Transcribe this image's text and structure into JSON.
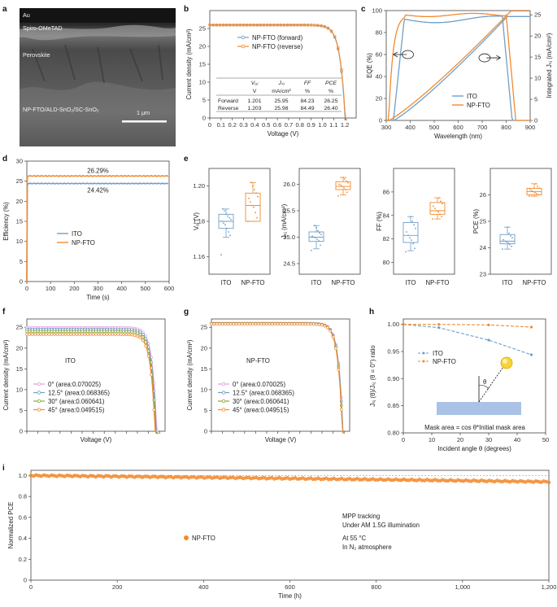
{
  "panels": {
    "a": "a",
    "b": "b",
    "c": "c",
    "d": "d",
    "e": "e",
    "f": "f",
    "g": "g",
    "h": "h",
    "i": "i"
  },
  "sem": {
    "layers": [
      "Au",
      "Spiro-OMeTAD",
      "Perovskite",
      "NP-FTO/ALD-SnO₂/SC-SnO₂"
    ],
    "scale_bar": "1 μm"
  },
  "colors": {
    "ito": "#6f9fc9",
    "npfto": "#f28a2e",
    "green": "#8aa636",
    "pink": "#e39be0",
    "purple": "#b07fd6"
  },
  "chart_data": [
    {
      "id": "b",
      "type": "line",
      "xlabel": "Voltage (V)",
      "ylabel": "Current density (mA/cm²)",
      "xlim": [
        0,
        1.3
      ],
      "ylim": [
        0,
        30
      ],
      "xticks": [
        "0",
        "0.1",
        "0.2",
        "0.3",
        "0.4",
        "0.5",
        "0.6",
        "0.7",
        "0.8",
        "0.9",
        "1.0",
        "1.1",
        "1.2"
      ],
      "yticks": [
        "0",
        "5",
        "10",
        "15",
        "20",
        "25"
      ],
      "series": [
        {
          "name": "NP-FTO (forward)",
          "jsc": 25.95,
          "voc": 1.201
        },
        {
          "name": "NP-FTO (reverse)",
          "jsc": 25.98,
          "voc": 1.203
        }
      ],
      "table": {
        "headers": [
          "Vₒⱼ",
          "Jₛⱼ",
          "FF",
          "PCE"
        ],
        "units": [
          "V",
          "mA/cm²",
          "%",
          "%"
        ],
        "rows": [
          {
            "label": "Forward",
            "values": [
              "1.201",
              "25.95",
              "84.23",
              "26.25"
            ]
          },
          {
            "label": "Reverse",
            "values": [
              "1.203",
              "25.98",
              "84.49",
              "26.40"
            ]
          }
        ]
      }
    },
    {
      "id": "c",
      "type": "line",
      "xlabel": "Wavelength (nm)",
      "ylabel": "EQE (%)",
      "ylabel2": "Integrated Jₛⱼ (mA/cm²)",
      "xlim": [
        300,
        900
      ],
      "ylim": [
        0,
        100
      ],
      "y2lim": [
        0,
        26
      ],
      "xticks": [
        "300",
        "400",
        "500",
        "600",
        "700",
        "800",
        "900"
      ],
      "yticks": [
        "0",
        "20",
        "40",
        "60",
        "80",
        "100"
      ],
      "y2ticks": [
        "0",
        "5",
        "10",
        "15",
        "20",
        "25"
      ],
      "series": [
        {
          "name": "ITO",
          "eqe_plateau": 92,
          "jsc_int": 24.6
        },
        {
          "name": "NP-FTO",
          "eqe_plateau": 96,
          "jsc_int": 25.9
        }
      ]
    },
    {
      "id": "d",
      "type": "line",
      "xlabel": "Time (s)",
      "ylabel": "Efficiency (%)",
      "xlim": [
        0,
        600
      ],
      "ylim": [
        0,
        30
      ],
      "xticks": [
        "0",
        "100",
        "200",
        "300",
        "400",
        "500",
        "600"
      ],
      "yticks": [
        "0",
        "5",
        "10",
        "15",
        "20",
        "25",
        "30"
      ],
      "series": [
        {
          "name": "ITO",
          "value": 24.42,
          "label": "24.42%"
        },
        {
          "name": "NP-FTO",
          "value": 26.29,
          "label": "26.29%"
        }
      ]
    },
    {
      "id": "e",
      "type": "box",
      "categories": [
        "ITO",
        "NP-FTO"
      ],
      "subplots": [
        {
          "ylabel": "Vₒⱼ (V)",
          "ylim": [
            1.15,
            1.21
          ],
          "yticks": [
            "1.16",
            "1.18",
            "1.20"
          ],
          "ito": {
            "q1": 1.176,
            "med": 1.18,
            "q3": 1.184,
            "lo": 1.171,
            "hi": 1.187,
            "pts": [
              1.161,
              1.172,
              1.174,
              1.176,
              1.178,
              1.179,
              1.18,
              1.181,
              1.182,
              1.183,
              1.184,
              1.186,
              1.187
            ]
          },
          "npfto": {
            "q1": 1.18,
            "med": 1.189,
            "q3": 1.196,
            "lo": 1.18,
            "hi": 1.202,
            "pts": [
              1.18,
              1.182,
              1.185,
              1.188,
              1.189,
              1.191,
              1.193,
              1.194,
              1.196,
              1.198,
              1.2,
              1.202
            ]
          }
        },
        {
          "ylabel": "Jₛⱼ (mA/cm²)",
          "ylim": [
            24.3,
            26.3
          ],
          "yticks": [
            "24.5",
            "25.0",
            "25.5",
            "26.0"
          ],
          "ito": {
            "q1": 24.92,
            "med": 25.0,
            "q3": 25.1,
            "lo": 24.78,
            "hi": 25.22,
            "pts": [
              24.75,
              24.85,
              24.93,
              24.96,
              24.99,
              25.0,
              25.02,
              25.05,
              25.08,
              25.12,
              25.18,
              25.22
            ]
          },
          "npfto": {
            "q1": 25.9,
            "med": 25.96,
            "q3": 26.05,
            "lo": 25.8,
            "hi": 26.13,
            "pts": [
              25.78,
              25.85,
              25.9,
              25.93,
              25.96,
              25.98,
              26.0,
              26.03,
              26.06,
              26.1,
              26.13
            ]
          }
        },
        {
          "ylabel": "FF (%)",
          "ylim": [
            79,
            88
          ],
          "yticks": [
            "80",
            "82",
            "84",
            "86"
          ],
          "ito": {
            "q1": 81.7,
            "med": 82.3,
            "q3": 83.4,
            "lo": 81.0,
            "hi": 83.9,
            "pts": [
              80.9,
              81.2,
              81.6,
              81.9,
              82.1,
              82.3,
              82.6,
              82.9,
              83.2,
              83.5,
              83.9
            ]
          },
          "npfto": {
            "q1": 84.1,
            "med": 84.4,
            "q3": 85.1,
            "lo": 83.7,
            "hi": 85.5,
            "pts": [
              83.7,
              83.9,
              84.1,
              84.3,
              84.4,
              84.6,
              84.8,
              85.0,
              85.2,
              85.5
            ]
          }
        },
        {
          "ylabel": "PCE (%)",
          "ylim": [
            23,
            27
          ],
          "yticks": [
            "23",
            "24",
            "25",
            "26"
          ],
          "ito": {
            "q1": 24.15,
            "med": 24.25,
            "q3": 24.5,
            "lo": 23.95,
            "hi": 24.78,
            "pts": [
              23.95,
              24.05,
              24.12,
              24.18,
              24.22,
              24.25,
              24.3,
              24.38,
              24.45,
              24.55,
              24.78
            ]
          },
          "npfto": {
            "q1": 26.0,
            "med": 26.12,
            "q3": 26.25,
            "lo": 25.95,
            "hi": 26.42,
            "pts": [
              25.95,
              26.0,
              26.05,
              26.08,
              26.12,
              26.15,
              26.2,
              26.25,
              26.32,
              26.42
            ]
          }
        }
      ]
    },
    {
      "id": "f",
      "type": "line",
      "xlabel": "Voltage (V)",
      "ylabel": "Current density (mA/cm²)",
      "device": "ITO",
      "xlim": [
        0,
        1.25
      ],
      "ylim": [
        0,
        27
      ],
      "xticks": [
        "0",
        "0.1",
        "0.2",
        "0.3",
        "0.4",
        "0.5",
        "0.6",
        "0.7",
        "0.8",
        "0.9",
        "1.0",
        "1.1",
        "1.2"
      ],
      "yticks": [
        "0",
        "5",
        "10",
        "15",
        "20",
        "25"
      ],
      "series": [
        {
          "name": "0° (area:0.070025)",
          "jsc": 24.9,
          "voc": 1.175
        },
        {
          "name": "12.5° (area:0.068365)",
          "jsc": 24.5,
          "voc": 1.17
        },
        {
          "name": "30° (area:0.060641)",
          "jsc": 24.0,
          "voc": 1.165
        },
        {
          "name": "45° (area:0.049515)",
          "jsc": 23.3,
          "voc": 1.16
        }
      ]
    },
    {
      "id": "g",
      "type": "line",
      "xlabel": "Voltage (V)",
      "ylabel": "Current density (mA/cm²)",
      "device": "NP-FTO",
      "xlim": [
        0,
        1.25
      ],
      "ylim": [
        0,
        27
      ],
      "xticks": [
        "0",
        "0.1",
        "0.2",
        "0.3",
        "0.4",
        "0.5",
        "0.6",
        "0.7",
        "0.8",
        "0.9",
        "1.0",
        "1.1",
        "1.2"
      ],
      "yticks": [
        "0",
        "5",
        "10",
        "15",
        "20",
        "25"
      ],
      "series": [
        {
          "name": "0° (area:0.070025)",
          "jsc": 25.95,
          "voc": 1.19
        },
        {
          "name": "12.5° (area:0.068365)",
          "jsc": 25.9,
          "voc": 1.188
        },
        {
          "name": "30° (area:0.060641)",
          "jsc": 25.85,
          "voc": 1.186
        },
        {
          "name": "45° (area:0.049515)",
          "jsc": 25.8,
          "voc": 1.184
        }
      ]
    },
    {
      "id": "h",
      "type": "line",
      "xlabel": "Incident angle θ (degrees)",
      "ylabel": "Jₛⱼ (θ)/Jₛⱼ (θ = 0°) ratio",
      "xlim": [
        0,
        50
      ],
      "ylim": [
        0.8,
        1.01
      ],
      "xticks": [
        "0",
        "10",
        "20",
        "30",
        "40",
        "50"
      ],
      "yticks": [
        "0.80",
        "0.85",
        "0.90",
        "0.95",
        "1.00"
      ],
      "x": [
        0,
        12.5,
        30,
        45
      ],
      "series": [
        {
          "name": "ITO",
          "values": [
            1.0,
            0.994,
            0.971,
            0.944
          ]
        },
        {
          "name": "NP-FTO",
          "values": [
            1.0,
            1.0,
            0.999,
            0.995
          ]
        }
      ],
      "inset_angle": "θ",
      "annotation": "Mask area = cos θ*Initial mask area"
    },
    {
      "id": "i",
      "type": "line",
      "xlabel": "Time (h)",
      "ylabel": "Normalized PCE",
      "xlim": [
        0,
        1200
      ],
      "ylim": [
        0,
        1.05
      ],
      "xticks": [
        "0",
        "200",
        "400",
        "600",
        "800",
        "1,000",
        "1,200"
      ],
      "yticks": [
        "0",
        "0.2",
        "0.4",
        "0.6",
        "0.8",
        "1.0"
      ],
      "series": [
        {
          "name": "NP-FTO",
          "start": 1.0,
          "end": 0.94
        }
      ],
      "notes": [
        "MPP tracking",
        "Under AM 1.5G illumination",
        "At 55 °C",
        "In N₂ atmosphere"
      ]
    }
  ]
}
